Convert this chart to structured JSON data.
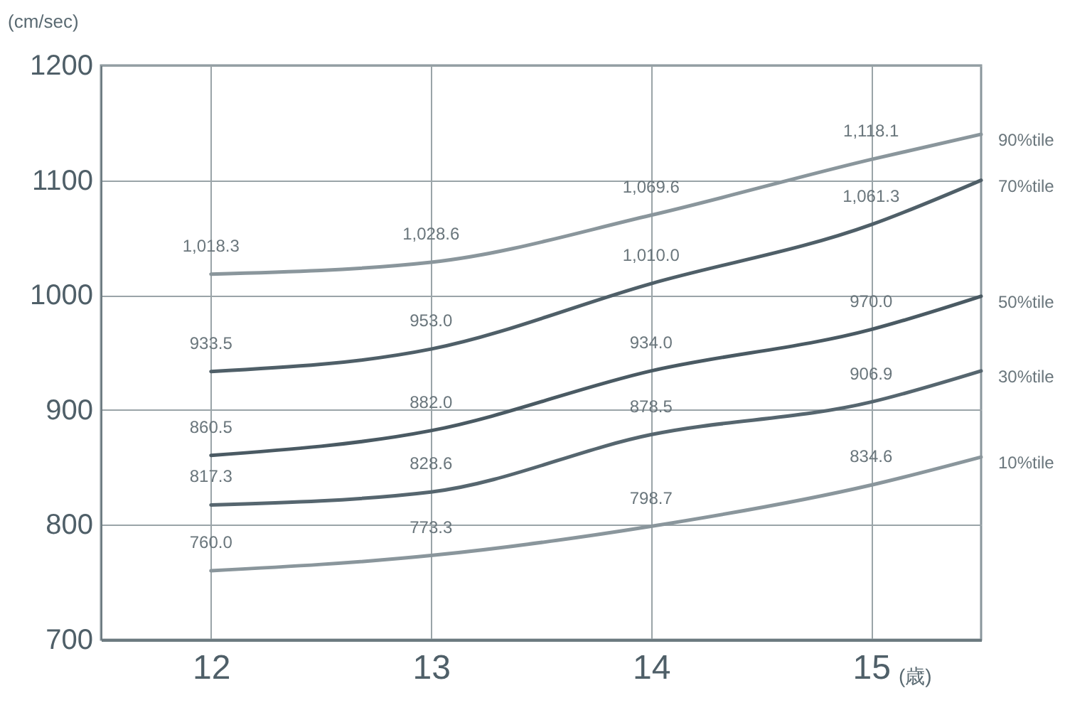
{
  "chart_data": {
    "type": "line",
    "ylabel": "(cm/sec)",
    "xlabel": "(歳)",
    "x": [
      12,
      13,
      14,
      15,
      15.5
    ],
    "xlim": [
      11.5,
      15.5
    ],
    "xticks": [
      12,
      13,
      14,
      15
    ],
    "ylim": [
      700,
      1200
    ],
    "yticks": [
      700,
      800,
      900,
      1000,
      1100,
      1200
    ],
    "grid": true,
    "series": [
      {
        "name": "90%tile",
        "color": "#8a969c",
        "values": [
          1018.3,
          1028.6,
          1069.6,
          1118.1,
          1140
        ],
        "value_labels": [
          "1,018.3",
          "1,028.6",
          "1,069.6",
          "1,118.1",
          null
        ]
      },
      {
        "name": "70%tile",
        "color": "#4f5f68",
        "values": [
          933.5,
          953.0,
          1010.0,
          1061.3,
          1100
        ],
        "value_labels": [
          "933.5",
          "953.0",
          "1,010.0",
          "1,061.3",
          null
        ]
      },
      {
        "name": "50%tile",
        "color": "#4a5a63",
        "values": [
          860.5,
          882.0,
          934.0,
          970.0,
          999
        ],
        "value_labels": [
          "860.5",
          "882.0",
          "934.0",
          "970.0",
          null
        ]
      },
      {
        "name": "30%tile",
        "color": "#56666f",
        "values": [
          817.3,
          828.6,
          878.5,
          906.9,
          934
        ],
        "value_labels": [
          "817.3",
          "828.6",
          "878.5",
          "906.9",
          null
        ]
      },
      {
        "name": "10%tile",
        "color": "#8a969c",
        "values": [
          760.0,
          773.3,
          798.7,
          834.6,
          859
        ],
        "value_labels": [
          "760.0",
          "773.3",
          "798.7",
          "834.6",
          null
        ]
      }
    ]
  }
}
